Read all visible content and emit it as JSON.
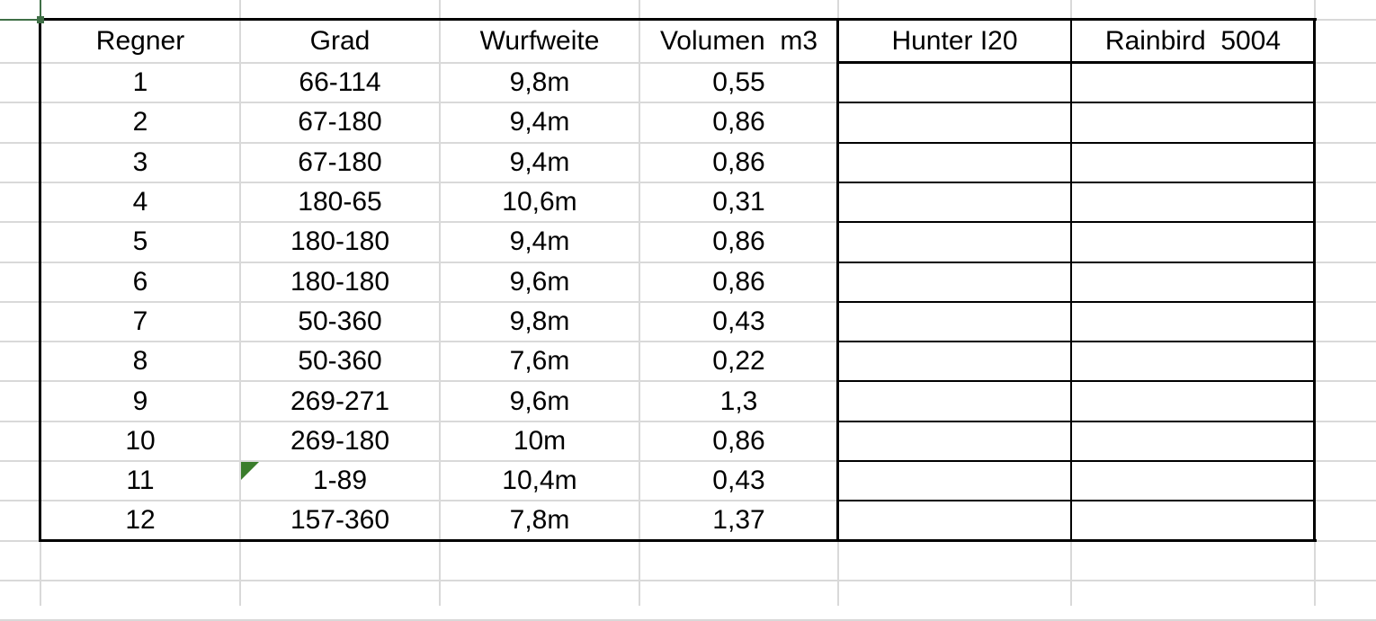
{
  "sheet": {
    "headers": [
      "Regner",
      "Grad",
      "Wurfweite",
      "Volumen  m3",
      "Hunter I20",
      "Rainbird  5004"
    ],
    "rows": [
      [
        "1",
        "66-114",
        "9,8m",
        "0,55",
        "",
        ""
      ],
      [
        "2",
        "67-180",
        "9,4m",
        "0,86",
        "",
        ""
      ],
      [
        "3",
        "67-180",
        "9,4m",
        "0,86",
        "",
        ""
      ],
      [
        "4",
        "180-65",
        "10,6m",
        "0,31",
        "",
        ""
      ],
      [
        "5",
        "180-180",
        "9,4m",
        "0,86",
        "",
        ""
      ],
      [
        "6",
        "180-180",
        "9,6m",
        "0,86",
        "",
        ""
      ],
      [
        "7",
        "50-360",
        "9,8m",
        "0,43",
        "",
        ""
      ],
      [
        "8",
        "50-360",
        "7,6m",
        "0,22",
        "",
        ""
      ],
      [
        "9",
        "269-271",
        "9,6m",
        "1,3",
        "",
        ""
      ],
      [
        "10",
        "269-180",
        "10m",
        "0,86",
        "",
        ""
      ],
      [
        "11",
        "1-89",
        "10,4m",
        "0,43",
        "",
        ""
      ],
      [
        "12",
        "157-360",
        "7,8m",
        "1,37",
        "",
        ""
      ]
    ],
    "comment_indicator_cell": "B11",
    "colors": {
      "gridline": "#d9d9d9",
      "selection": "#3f6f46",
      "indicator": "#3a7d2c"
    }
  }
}
